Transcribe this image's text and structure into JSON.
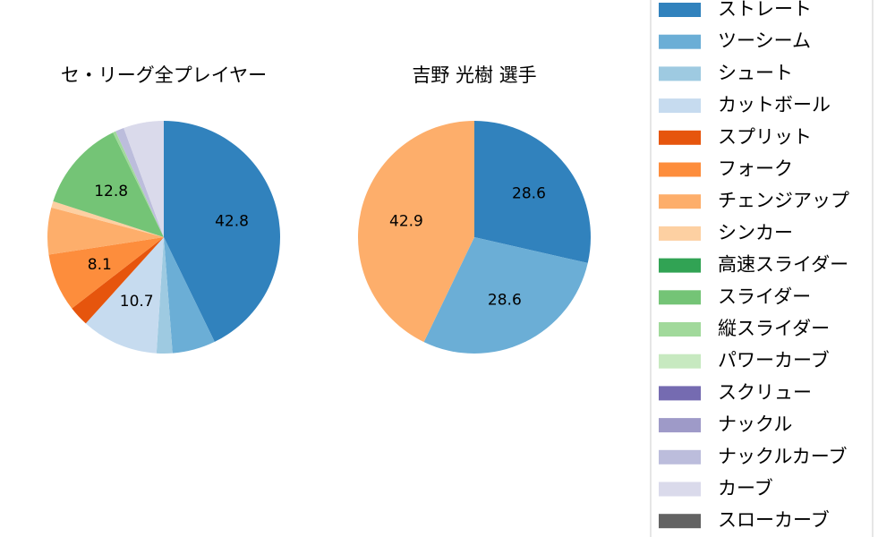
{
  "chart_data": [
    {
      "type": "pie",
      "title": "セ・リーグ全プレイヤー",
      "categories": [
        "ストレート",
        "ツーシーム",
        "シュート",
        "カットボール",
        "スプリット",
        "フォーク",
        "チェンジアップ",
        "シンカー",
        "高速スライダー",
        "スライダー",
        "縦スライダー",
        "パワーカーブ",
        "スクリュー",
        "ナックル",
        "ナックルカーブ",
        "カーブ",
        "スローカーブ"
      ],
      "values": [
        42.8,
        6.0,
        2.2,
        10.7,
        2.8,
        8.1,
        6.5,
        0.9,
        0,
        12.8,
        0.4,
        0,
        0,
        0,
        1.2,
        5.6,
        0
      ],
      "value_labels": [
        "42.8",
        null,
        null,
        "10.7",
        null,
        "8.1",
        null,
        null,
        null,
        "12.8",
        null,
        null,
        null,
        null,
        null,
        null,
        null
      ],
      "colors": [
        "#3182bd",
        "#6baed6",
        "#9ecae1",
        "#c6dbef",
        "#e6550d",
        "#fd8d3c",
        "#fdae6b",
        "#fdd0a2",
        "#31a354",
        "#74c476",
        "#a1d99b",
        "#c7e9c0",
        "#756bb1",
        "#9e9ac8",
        "#bcbddc",
        "#dadaeb",
        "#636363"
      ]
    },
    {
      "type": "pie",
      "title": "吉野 光樹  選手",
      "categories": [
        "ストレート",
        "ツーシーム",
        "チェンジアップ"
      ],
      "values": [
        28.6,
        28.6,
        42.9
      ],
      "colors": [
        "#3182bd",
        "#6baed6",
        "#fdae6b"
      ]
    }
  ]
}
